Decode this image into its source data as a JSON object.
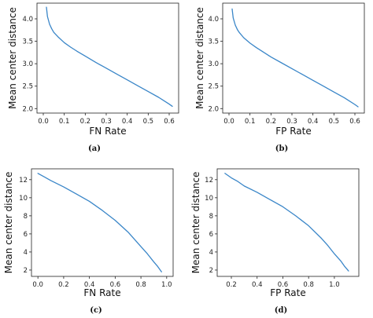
{
  "line_color": "#3a86c8",
  "chart_data": [
    {
      "type": "line",
      "caption": "(a)",
      "xlabel": "FN Rate",
      "ylabel": "Mean center distance",
      "xlim": [
        -0.03,
        0.645
      ],
      "ylim": [
        1.9,
        4.35
      ],
      "xticks": [
        0.0,
        0.1,
        0.2,
        0.3,
        0.4,
        0.5,
        0.6
      ],
      "yticks": [
        2.0,
        2.5,
        3.0,
        3.5,
        4.0
      ],
      "xtick_labels": [
        "0.0",
        "0.1",
        "0.2",
        "0.3",
        "0.4",
        "0.5",
        "0.6"
      ],
      "ytick_labels": [
        "2.0",
        "2.5",
        "3.0",
        "3.5",
        "4.0"
      ],
      "grid": false,
      "x": [
        0.015,
        0.02,
        0.03,
        0.04,
        0.05,
        0.07,
        0.1,
        0.13,
        0.16,
        0.2,
        0.25,
        0.3,
        0.35,
        0.4,
        0.45,
        0.5,
        0.55,
        0.6,
        0.615
      ],
      "y": [
        4.26,
        4.05,
        3.88,
        3.78,
        3.7,
        3.6,
        3.47,
        3.37,
        3.28,
        3.17,
        3.03,
        2.9,
        2.77,
        2.64,
        2.51,
        2.38,
        2.25,
        2.1,
        2.05
      ]
    },
    {
      "type": "line",
      "caption": "(b)",
      "xlabel": "FP Rate",
      "ylabel": "Mean center distance",
      "xlim": [
        -0.03,
        0.645
      ],
      "ylim": [
        1.9,
        4.35
      ],
      "xticks": [
        0.0,
        0.1,
        0.2,
        0.3,
        0.4,
        0.5,
        0.6
      ],
      "yticks": [
        2.0,
        2.5,
        3.0,
        3.5,
        4.0
      ],
      "xtick_labels": [
        "0.0",
        "0.1",
        "0.2",
        "0.3",
        "0.4",
        "0.5",
        "0.6"
      ],
      "ytick_labels": [
        "2.0",
        "2.5",
        "3.0",
        "3.5",
        "4.0"
      ],
      "grid": false,
      "x": [
        0.015,
        0.02,
        0.03,
        0.04,
        0.05,
        0.07,
        0.1,
        0.13,
        0.16,
        0.2,
        0.25,
        0.3,
        0.35,
        0.4,
        0.45,
        0.5,
        0.55,
        0.6,
        0.615
      ],
      "y": [
        4.22,
        4.02,
        3.86,
        3.76,
        3.69,
        3.58,
        3.46,
        3.36,
        3.27,
        3.15,
        3.02,
        2.89,
        2.76,
        2.63,
        2.5,
        2.37,
        2.24,
        2.09,
        2.04
      ]
    },
    {
      "type": "line",
      "caption": "(c)",
      "xlabel": "FN Rate",
      "ylabel": "Mean center distance",
      "xlim": [
        -0.05,
        1.05
      ],
      "ylim": [
        1.3,
        13.2
      ],
      "xticks": [
        0.0,
        0.2,
        0.4,
        0.6,
        0.8,
        1.0
      ],
      "yticks": [
        2,
        4,
        6,
        8,
        10,
        12
      ],
      "xtick_labels": [
        "0.0",
        "0.2",
        "0.4",
        "0.6",
        "0.8",
        "1.0"
      ],
      "ytick_labels": [
        "2",
        "4",
        "6",
        "8",
        "10",
        "12"
      ],
      "grid": false,
      "x": [
        0.0,
        0.05,
        0.1,
        0.2,
        0.3,
        0.4,
        0.5,
        0.6,
        0.7,
        0.8,
        0.85,
        0.9,
        0.93,
        0.96
      ],
      "y": [
        12.7,
        12.3,
        11.9,
        11.2,
        10.4,
        9.6,
        8.6,
        7.5,
        6.2,
        4.6,
        3.8,
        2.9,
        2.4,
        1.8
      ]
    },
    {
      "type": "line",
      "caption": "(d)",
      "xlabel": "FP Rate",
      "ylabel": "Mean center distance",
      "xlim": [
        0.09,
        1.19
      ],
      "ylim": [
        1.3,
        13.2
      ],
      "xticks": [
        0.2,
        0.4,
        0.6,
        0.8,
        1.0
      ],
      "yticks": [
        2,
        4,
        6,
        8,
        10,
        12
      ],
      "xtick_labels": [
        "0.2",
        "0.4",
        "0.6",
        "0.8",
        "1.0"
      ],
      "ytick_labels": [
        "2",
        "4",
        "6",
        "8",
        "10",
        "12"
      ],
      "grid": false,
      "x": [
        0.15,
        0.2,
        0.25,
        0.3,
        0.4,
        0.5,
        0.6,
        0.7,
        0.8,
        0.9,
        0.95,
        1.0,
        1.05,
        1.08,
        1.11
      ],
      "y": [
        12.7,
        12.2,
        11.8,
        11.3,
        10.6,
        9.8,
        9.0,
        8.0,
        6.9,
        5.5,
        4.7,
        3.8,
        3.0,
        2.4,
        1.9
      ]
    }
  ]
}
